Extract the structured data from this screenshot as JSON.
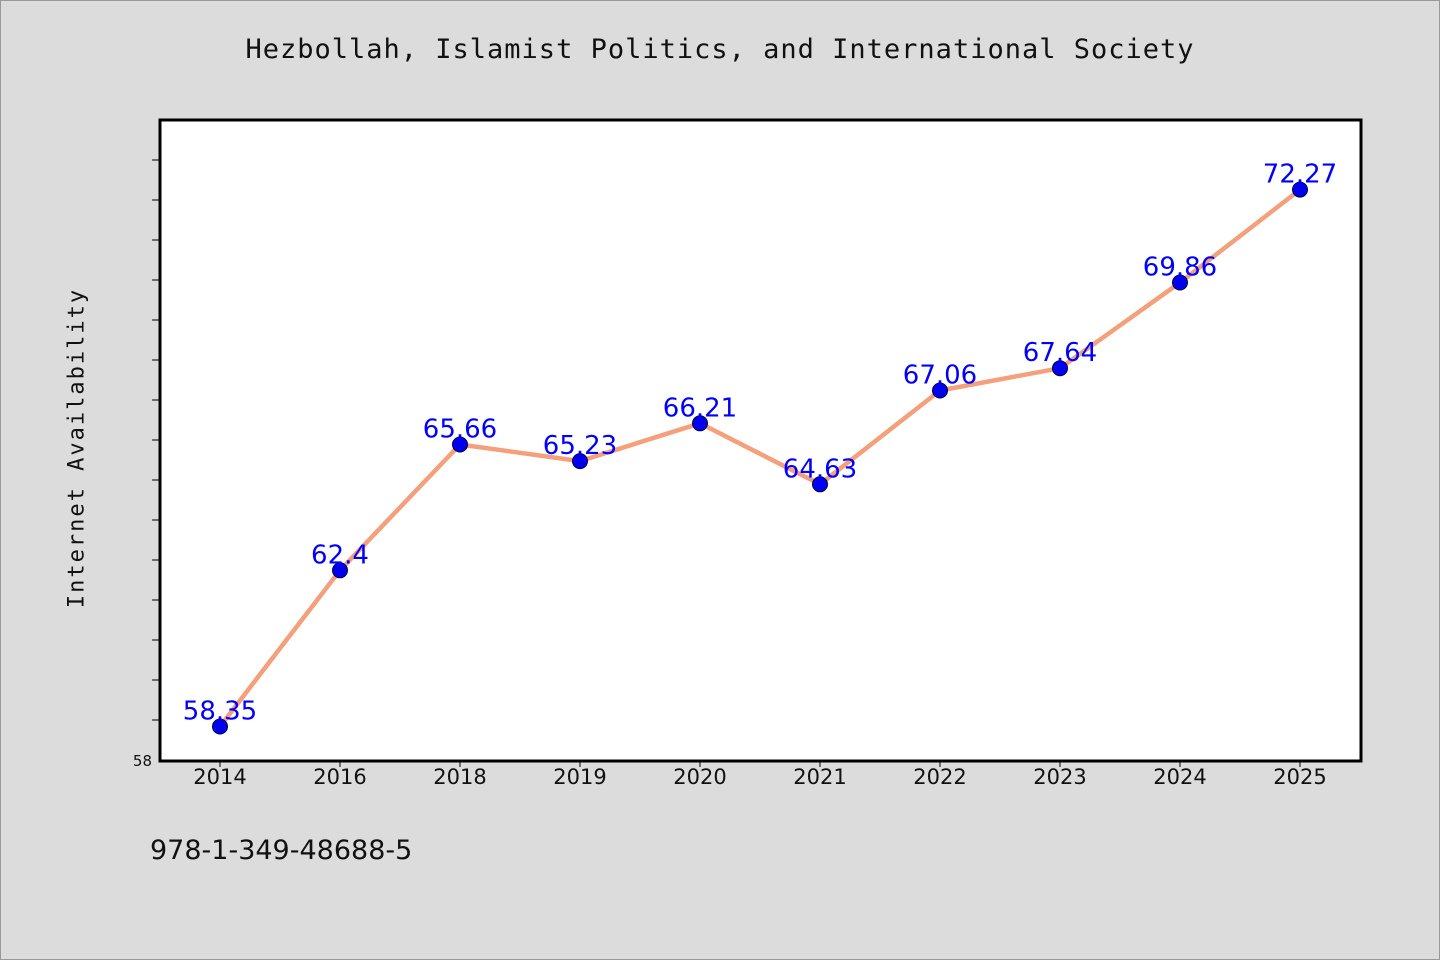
{
  "title": "Hezbollah, Islamist Politics, and International Society",
  "footer_text": "978-1-349-48688-5",
  "colors": {
    "background": "#dcdcdc",
    "plot_background": "#ffffff",
    "line": "#f4a07c",
    "marker": "#0000ee",
    "data_label": "#0000ff"
  },
  "chart_data": {
    "type": "line",
    "title": "Hezbollah, Islamist Politics, and International Society",
    "xlabel": "",
    "ylabel": "Internet Availability",
    "categories": [
      "2014",
      "2016",
      "2018",
      "2019",
      "2020",
      "2021",
      "2022",
      "2023",
      "2024",
      "2025"
    ],
    "series": [
      {
        "values": [
          58.35,
          62.4,
          65.66,
          65.23,
          66.21,
          64.63,
          67.06,
          67.64,
          69.86,
          72.27
        ]
      }
    ],
    "data_labels": [
      "58.35",
      "62.4",
      "65.66",
      "65.23",
      "66.21",
      "64.63",
      "67.06",
      "67.64",
      "69.86",
      "72.27"
    ],
    "y_tick_labels": [
      "58"
    ],
    "ylim": [
      58,
      74
    ],
    "grid": false,
    "legend": "none"
  }
}
